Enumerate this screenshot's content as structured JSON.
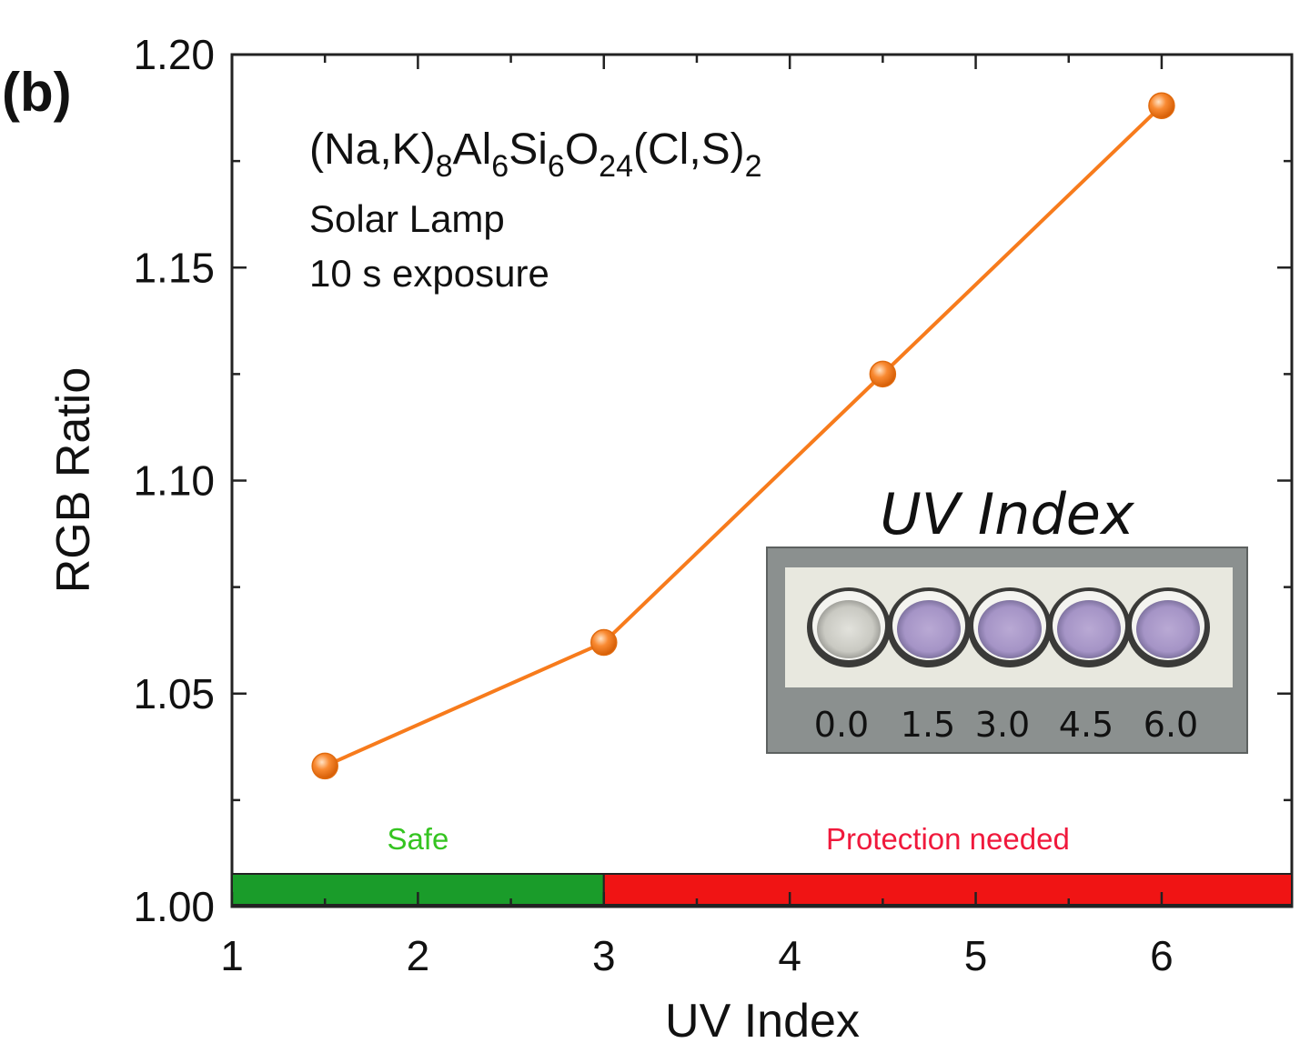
{
  "chart_data": {
    "type": "line",
    "panel_label": "(b)",
    "xlabel": "UV Index",
    "ylabel": "RGB Ratio",
    "xlim": [
      1,
      6.7
    ],
    "ylim": [
      1.0,
      1.2
    ],
    "x_ticks": [
      "1",
      "2",
      "3",
      "4",
      "5",
      "6"
    ],
    "y_ticks": [
      "1.00",
      "1.05",
      "1.10",
      "1.15",
      "1.20"
    ],
    "series": [
      {
        "x": [
          1.5,
          3.0,
          4.5,
          6.0
        ],
        "y": [
          1.033,
          1.062,
          1.125,
          1.188
        ],
        "color": "#f77b1c"
      }
    ],
    "annotations": {
      "formula": {
        "parts": [
          {
            "text": "(Na,K)",
            "sub": false
          },
          {
            "text": "8",
            "sub": true
          },
          {
            "text": "Al",
            "sub": false
          },
          {
            "text": "6",
            "sub": true
          },
          {
            "text": "Si",
            "sub": false
          },
          {
            "text": "6",
            "sub": true
          },
          {
            "text": "O",
            "sub": false
          },
          {
            "text": "24",
            "sub": true
          },
          {
            "text": "(Cl,S)",
            "sub": false
          },
          {
            "text": "2",
            "sub": true
          }
        ]
      },
      "line1": "Solar Lamp",
      "line2": "10 s exposure"
    },
    "zones": [
      {
        "label": "Safe",
        "from": 1,
        "to": 3,
        "color": "#1a9c2a",
        "label_color": "#35c421"
      },
      {
        "label": "Protection needed",
        "from": 3,
        "to": 6.7,
        "color": "#f01414",
        "label_color": "#f0193c"
      }
    ],
    "inset": {
      "title": "UV Index",
      "labels": [
        "0.0",
        "1.5",
        "3.0",
        "4.5",
        "6.0"
      ]
    }
  }
}
